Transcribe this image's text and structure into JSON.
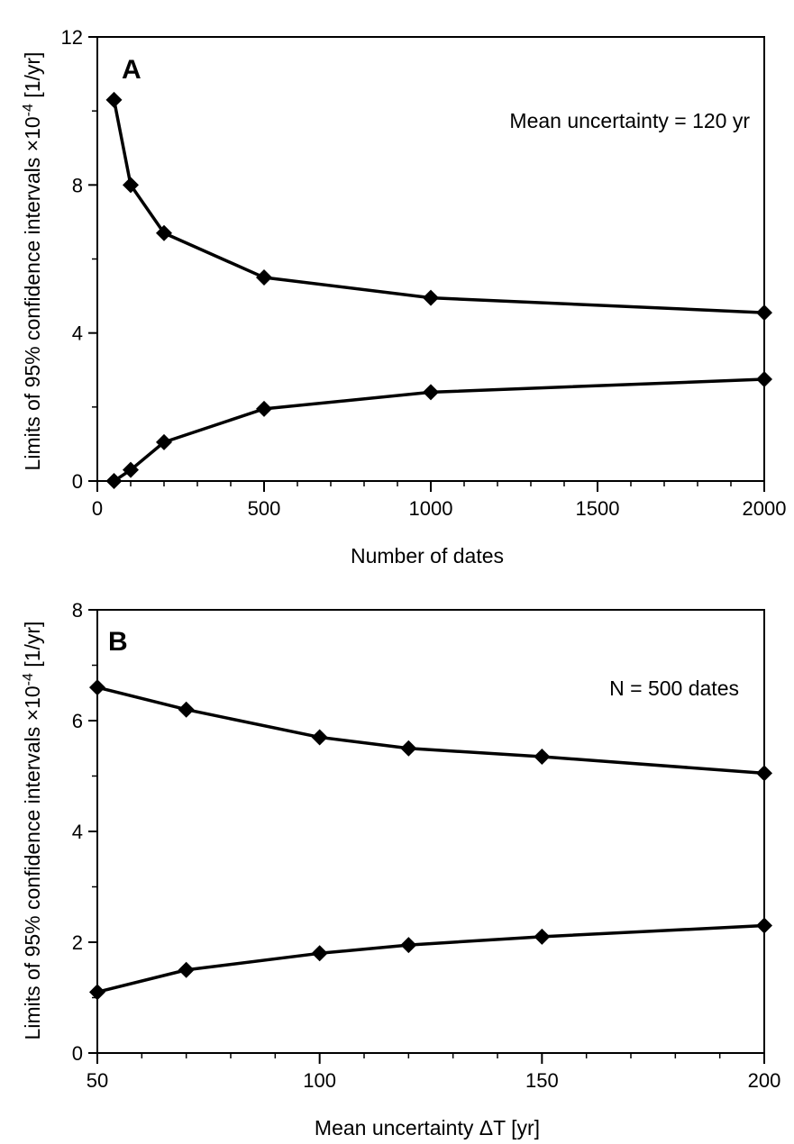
{
  "chart_data": [
    {
      "panel": "A",
      "type": "line",
      "annotation": "Mean uncertainty = 120 yr",
      "xlabel": "Number of dates",
      "ylabel": "Limits of 95% confidence intervals ×10",
      "ylabel_exp": "-4",
      "ylabel_unit": " [1/yr]",
      "xlim": [
        0,
        2000
      ],
      "ylim": [
        0,
        12
      ],
      "x_breaks": [
        [
          0,
          500
        ],
        [
          500,
          1000
        ],
        [
          1000,
          2000
        ]
      ],
      "x_ticks": [
        0,
        500,
        1000,
        1500,
        2000
      ],
      "x_tick_labels": [
        "0",
        "500",
        "1000",
        "1500",
        "2000"
      ],
      "y_ticks": [
        0,
        4,
        8,
        12
      ],
      "y_tick_labels": [
        "0",
        "4",
        "8",
        "12"
      ],
      "grid": false,
      "series": [
        {
          "x": [
            50,
            100,
            200,
            500,
            1000,
            2000
          ],
          "values": [
            10.3,
            8.0,
            6.7,
            5.5,
            4.95,
            4.55
          ]
        },
        {
          "x": [
            50,
            100,
            200,
            500,
            1000,
            2000
          ],
          "values": [
            0.0,
            0.3,
            1.05,
            1.95,
            2.4,
            2.75
          ]
        }
      ]
    },
    {
      "panel": "B",
      "type": "line",
      "annotation": "N = 500 dates",
      "xlabel": "Mean uncertainty  ΔT [yr]",
      "ylabel": "Limits of 95% confidence intervals ×10",
      "ylabel_exp": "-4",
      "ylabel_unit": " [1/yr]",
      "xlim": [
        50,
        200
      ],
      "ylim": [
        0,
        8
      ],
      "x_ticks": [
        50,
        100,
        150,
        200
      ],
      "x_tick_labels": [
        "50",
        "100",
        "150",
        "200"
      ],
      "y_ticks": [
        0,
        2,
        4,
        6,
        8
      ],
      "y_tick_labels": [
        "0",
        "2",
        "4",
        "6",
        "8"
      ],
      "grid": false,
      "series": [
        {
          "x": [
            50,
            70,
            100,
            120,
            150,
            200
          ],
          "values": [
            6.6,
            6.2,
            5.7,
            5.5,
            5.35,
            5.05
          ]
        },
        {
          "x": [
            50,
            70,
            100,
            120,
            150,
            200
          ],
          "values": [
            1.1,
            1.5,
            1.8,
            1.95,
            2.1,
            2.3
          ]
        }
      ]
    }
  ]
}
